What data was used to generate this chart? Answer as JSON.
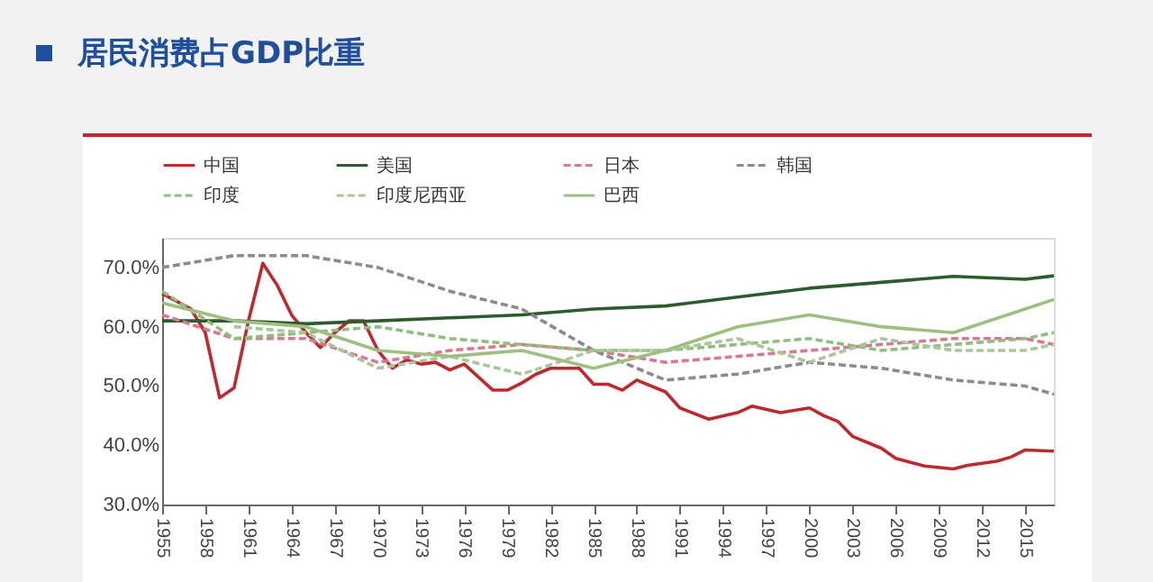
{
  "chart_data": {
    "type": "line",
    "title": "居民消费占GDP比重",
    "xlim": [
      1955,
      2017
    ],
    "xticks": [
      1955,
      1958,
      1961,
      1964,
      1967,
      1970,
      1973,
      1976,
      1979,
      1982,
      1985,
      1988,
      1991,
      1994,
      1997,
      2000,
      2003,
      2006,
      2009,
      2012,
      2015
    ],
    "ylim": [
      30,
      75
    ],
    "yticks": [
      {
        "value": 30,
        "label": "30.0%"
      },
      {
        "value": 40,
        "label": "40.0%"
      },
      {
        "value": 50,
        "label": "50.0%"
      },
      {
        "value": 60,
        "label": "60.0%"
      },
      {
        "value": 70,
        "label": "70.0%"
      }
    ],
    "grid": false,
    "legend": "top",
    "marker": "none",
    "series": [
      {
        "name": "中国",
        "color": "#c0282f",
        "line_style": "solid",
        "x": [
          1955,
          1957,
          1958,
          1959,
          1960,
          1961,
          1962,
          1963,
          1964,
          1965,
          1966,
          1967,
          1968,
          1969,
          1970,
          1971,
          1972,
          1973,
          1974,
          1975,
          1976,
          1977,
          1978,
          1979,
          1980,
          1981,
          1982,
          1983,
          1984,
          1985,
          1986,
          1987,
          1988,
          1990,
          1991,
          1993,
          1995,
          1996,
          1998,
          2000,
          2001,
          2002,
          2003,
          2005,
          2006,
          2008,
          2010,
          2011,
          2013,
          2014,
          2015,
          2017
        ],
        "values": [
          65.6,
          63,
          59,
          48,
          49.7,
          61,
          70.7,
          67,
          62,
          59,
          56.5,
          59,
          61,
          61,
          56,
          53,
          54.4,
          53.7,
          54,
          52.7,
          53.7,
          51.5,
          49.3,
          49.3,
          50.5,
          52,
          53,
          53,
          53,
          50.3,
          50.3,
          49.3,
          51,
          49,
          46.3,
          44.4,
          45.5,
          46.6,
          45.5,
          46.3,
          45,
          44,
          41.5,
          39.5,
          37.8,
          36.5,
          36,
          36.6,
          37.3,
          38,
          39.2,
          39
        ]
      },
      {
        "name": "美国",
        "color": "#2e5a2e",
        "line_style": "solid",
        "x": [
          1955,
          1960,
          1965,
          1970,
          1975,
          1980,
          1985,
          1990,
          1995,
          2000,
          2005,
          2010,
          2015,
          2017
        ],
        "values": [
          61,
          61,
          60.5,
          61,
          61.5,
          62,
          63,
          63.5,
          65,
          66.5,
          67.5,
          68.5,
          68,
          68.6
        ]
      },
      {
        "name": "日本",
        "color": "#d9788f",
        "line_style": "dashed",
        "x": [
          1955,
          1960,
          1965,
          1970,
          1975,
          1980,
          1985,
          1990,
          1995,
          2000,
          2005,
          2010,
          2015,
          2017
        ],
        "values": [
          62,
          58,
          58,
          54,
          56,
          57,
          56,
          54,
          55,
          56,
          57,
          58,
          58,
          57
        ]
      },
      {
        "name": "韩国",
        "color": "#8c8c8c",
        "line_style": "dashed",
        "x": [
          1955,
          1960,
          1965,
          1970,
          1975,
          1980,
          1985,
          1990,
          1995,
          2000,
          2005,
          2010,
          2015,
          2017
        ],
        "values": [
          70,
          72,
          72,
          70,
          66,
          63,
          56,
          51,
          52,
          54,
          53,
          51,
          50,
          48.6
        ]
      },
      {
        "name": "印度",
        "color": "#8fbf7f",
        "line_style": "dashed",
        "x": [
          1955,
          1960,
          1965,
          1970,
          1975,
          1980,
          1985,
          1990,
          1995,
          2000,
          2005,
          2010,
          2015,
          2017
        ],
        "values": [
          66,
          58,
          59,
          60,
          58,
          57,
          56,
          56,
          57,
          58,
          56,
          57,
          58,
          59
        ]
      },
      {
        "name": "印度尼西亚",
        "color": "#a8c89a",
        "line_style": "dashed",
        "x": [
          1960,
          1965,
          1970,
          1975,
          1980,
          1985,
          1990,
          1995,
          2000,
          2005,
          2010,
          2015,
          2017
        ],
        "values": [
          60,
          59,
          53,
          55,
          52,
          56,
          56,
          58,
          54,
          58,
          56,
          56,
          57
        ]
      },
      {
        "name": "巴西",
        "color": "#9fbf80",
        "line_style": "solid",
        "x": [
          1955,
          1960,
          1965,
          1970,
          1975,
          1980,
          1985,
          1990,
          1995,
          2000,
          2005,
          2010,
          2015,
          2017
        ],
        "values": [
          64,
          61,
          60,
          56,
          55,
          56,
          53,
          56,
          60,
          62,
          60,
          59,
          63,
          64.6
        ]
      }
    ]
  }
}
